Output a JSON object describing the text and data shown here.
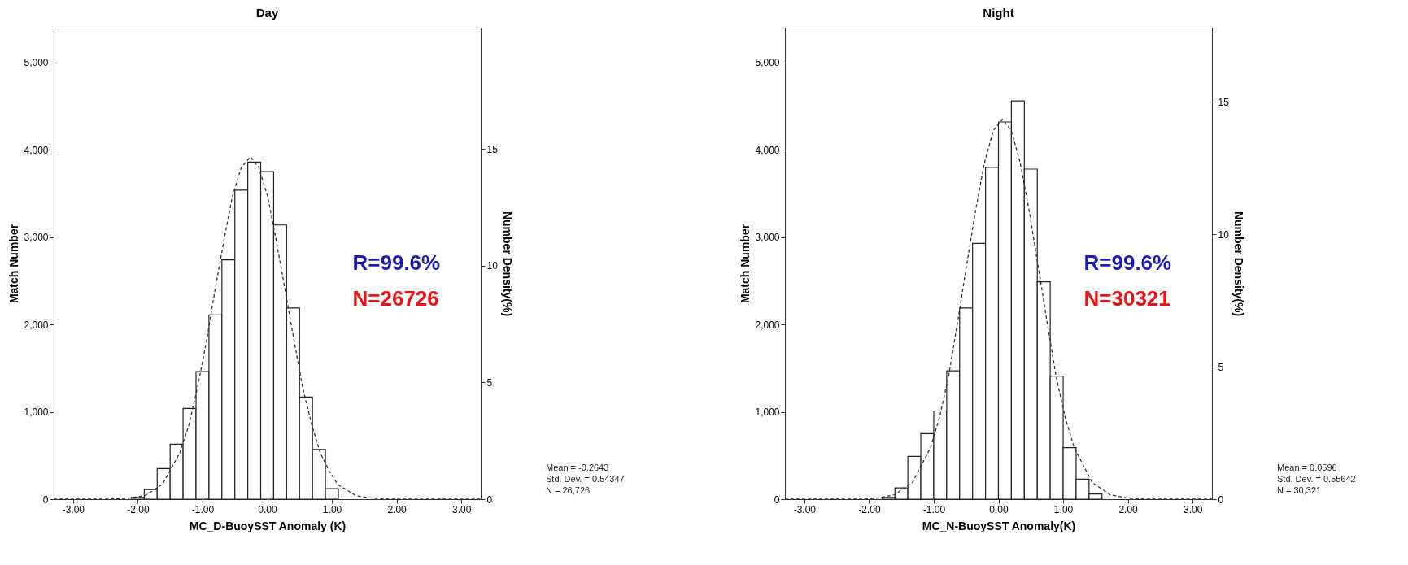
{
  "chart_data": [
    {
      "type": "histogram",
      "title": "Day",
      "xlabel": "MC_D-BuoySST Anomaly (K)",
      "ylabel": "Match Number",
      "y2label": "Number Density(%)",
      "color": "#ffffff",
      "bins": [
        -2.1,
        -1.9,
        -1.7,
        -1.5,
        -1.3,
        -1.1,
        -0.9,
        -0.7,
        -0.5,
        -0.3,
        -0.1,
        0.1,
        0.3,
        0.5,
        0.7,
        0.9,
        1.1
      ],
      "values": [
        20,
        110,
        350,
        630,
        1040,
        1460,
        2110,
        2740,
        3540,
        3860,
        3750,
        3140,
        2190,
        1170,
        570,
        120
      ],
      "series": [
        {
          "type": "line",
          "line_style": "dashed",
          "color": "#333333",
          "x": [
            -3.3,
            -2.44,
            -2.16,
            -1.89,
            -1.62,
            -1.35,
            -1.21,
            -1.08,
            -0.94,
            -0.81,
            -0.67,
            -0.54,
            -0.4,
            -0.26,
            -0.13,
            0.01,
            0.14,
            0.28,
            0.42,
            0.55,
            0.69,
            0.82,
            0.96,
            1.09,
            1.37,
            1.64,
            1.91,
            3.3
          ],
          "values": [
            0,
            0,
            10,
            40,
            170,
            530,
            850,
            1270,
            1800,
            2380,
            2960,
            3460,
            3800,
            3920,
            3800,
            3460,
            2960,
            2380,
            1800,
            1270,
            850,
            530,
            320,
            170,
            40,
            10,
            0,
            0
          ]
        }
      ],
      "xlim": [
        -3.3,
        3.3
      ],
      "xticks": [
        {
          "value": -3,
          "label": "-3.00"
        },
        {
          "value": -2,
          "label": "-2.00"
        },
        {
          "value": -1,
          "label": "-1.00"
        },
        {
          "value": 0,
          "label": "0.00"
        },
        {
          "value": 1,
          "label": "1.00"
        },
        {
          "value": 2,
          "label": "2.00"
        },
        {
          "value": 3,
          "label": "3.00"
        }
      ],
      "ylim": [
        0,
        5400
      ],
      "yticks": [
        0,
        {
          "value": 1000,
          "label": "1,000"
        },
        {
          "value": 2000,
          "label": "2,000"
        },
        {
          "value": 3000,
          "label": "3,000"
        },
        {
          "value": 4000,
          "label": "4,000"
        },
        {
          "value": 5000,
          "label": "5,000"
        }
      ],
      "y2lim": [
        0,
        20.2
      ],
      "y2ticks": [
        0,
        5,
        10,
        15
      ],
      "annotations": [
        "R=99.6%",
        "N=26726",
        "Mean = -0.2643",
        "Std. Dev. = 0.54347",
        "N = 26,726"
      ]
    },
    {
      "type": "histogram",
      "title": "Night",
      "xlabel": "MC_N-BuoySST Anomaly(K)",
      "ylabel": "Match Number",
      "y2label": "Number Density(%)",
      "color": "#ffffff",
      "bins": [
        -1.8,
        -1.6,
        -1.4,
        -1.2,
        -1.0,
        -0.8,
        -0.6,
        -0.4,
        -0.2,
        0,
        0.2,
        0.4,
        0.6,
        0.8,
        1.0,
        1.2,
        1.4,
        1.6
      ],
      "values": [
        20,
        130,
        490,
        750,
        1010,
        1470,
        2190,
        2930,
        3800,
        4320,
        4560,
        3780,
        2490,
        1410,
        590,
        230,
        60
      ],
      "series": [
        {
          "type": "line",
          "line_style": "dashed",
          "color": "#333333",
          "x": [
            -3.3,
            -2.16,
            -1.89,
            -1.61,
            -1.33,
            -1.05,
            -0.91,
            -0.77,
            -0.64,
            -0.5,
            -0.36,
            -0.22,
            -0.08,
            0.06,
            0.2,
            0.34,
            0.48,
            0.62,
            0.76,
            0.89,
            1.03,
            1.17,
            1.45,
            1.73,
            2.01,
            2.28,
            3.3
          ],
          "values": [
            0,
            0,
            10,
            50,
            190,
            590,
            940,
            1410,
            1990,
            2640,
            3280,
            3840,
            4220,
            4350,
            4220,
            3840,
            3280,
            2640,
            1990,
            1410,
            940,
            590,
            190,
            50,
            10,
            0,
            0
          ]
        }
      ],
      "xlim": [
        -3.3,
        3.3
      ],
      "xticks": [
        {
          "value": -3,
          "label": "-3.00"
        },
        {
          "value": -2,
          "label": "-2.00"
        },
        {
          "value": -1,
          "label": "-1.00"
        },
        {
          "value": 0,
          "label": "0.00"
        },
        {
          "value": 1,
          "label": "1.00"
        },
        {
          "value": 2,
          "label": "2.00"
        },
        {
          "value": 3,
          "label": "3.00"
        }
      ],
      "ylim": [
        0,
        5400
      ],
      "yticks": [
        0,
        {
          "value": 1000,
          "label": "1,000"
        },
        {
          "value": 2000,
          "label": "2,000"
        },
        {
          "value": 3000,
          "label": "3,000"
        },
        {
          "value": 4000,
          "label": "4,000"
        },
        {
          "value": 5000,
          "label": "5,000"
        }
      ],
      "y2lim": [
        0,
        17.8
      ],
      "y2ticks": [
        0,
        5,
        10,
        15
      ],
      "annotations": [
        "R=99.6%",
        "N=30321",
        "Mean = 0.0596",
        "Std. Dev. = 0.55642",
        "N = 30,321"
      ]
    }
  ]
}
